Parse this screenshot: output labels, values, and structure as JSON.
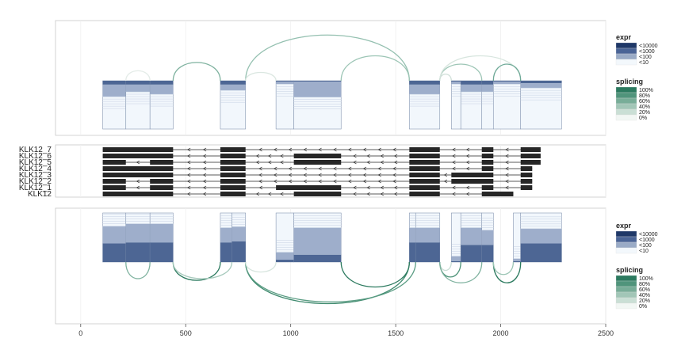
{
  "chart_data": {
    "type": "sashimi",
    "title": "",
    "xlabel": "",
    "ylabel": "",
    "x_axis": {
      "ticks": [
        0,
        500,
        1000,
        1500,
        2000,
        2500
      ],
      "range": [
        -120,
        2500
      ]
    },
    "isoforms": [
      {
        "name": "KLK12_7",
        "exons": [
          [
            105,
            440
          ],
          [
            665,
            785
          ],
          [
            1565,
            1710
          ],
          [
            1910,
            1965
          ],
          [
            2095,
            2190
          ]
        ]
      },
      {
        "name": "KLK12_6",
        "exons": [
          [
            105,
            440
          ],
          [
            665,
            785
          ],
          [
            1015,
            1240
          ],
          [
            1565,
            1710
          ],
          [
            1910,
            1965
          ],
          [
            2095,
            2190
          ]
        ]
      },
      {
        "name": "KLK12_5",
        "exons": [
          [
            105,
            215
          ],
          [
            330,
            440
          ],
          [
            665,
            785
          ],
          [
            1015,
            1240
          ],
          [
            1565,
            1710
          ],
          [
            1910,
            1965
          ],
          [
            2095,
            2190
          ]
        ]
      },
      {
        "name": "KLK12_4",
        "exons": [
          [
            105,
            440
          ],
          [
            665,
            785
          ],
          [
            1565,
            1710
          ],
          [
            1910,
            1965
          ],
          [
            2095,
            2150
          ]
        ]
      },
      {
        "name": "KLK12_3",
        "exons": [
          [
            105,
            440
          ],
          [
            665,
            785
          ],
          [
            1565,
            1710
          ],
          [
            1765,
            1965
          ],
          [
            2095,
            2150
          ]
        ]
      },
      {
        "name": "KLK12_2",
        "exons": [
          [
            105,
            215
          ],
          [
            330,
            440
          ],
          [
            665,
            785
          ],
          [
            1565,
            1710
          ],
          [
            1765,
            1965
          ],
          [
            2095,
            2150
          ]
        ]
      },
      {
        "name": "KLK12_1",
        "exons": [
          [
            105,
            215
          ],
          [
            330,
            440
          ],
          [
            665,
            785
          ],
          [
            930,
            1240
          ],
          [
            1565,
            1710
          ],
          [
            1910,
            1965
          ],
          [
            2095,
            2150
          ]
        ]
      },
      {
        "name": "KLK12",
        "exons": [
          [
            105,
            440
          ],
          [
            665,
            785
          ],
          [
            1015,
            1240
          ],
          [
            1565,
            1710
          ],
          [
            1910,
            2060
          ]
        ]
      }
    ],
    "panels": [
      {
        "position": "top",
        "coverage_blocks": [
          {
            "x0": 105,
            "x1": 215,
            "heavy": 0.08,
            "medium": 0.25
          },
          {
            "x0": 215,
            "x1": 330,
            "heavy": 0.08,
            "medium": 0.15
          },
          {
            "x0": 330,
            "x1": 440,
            "heavy": 0.08,
            "medium": 0.2
          },
          {
            "x0": 665,
            "x1": 785,
            "heavy": 0.08,
            "medium": 0.12
          },
          {
            "x0": 930,
            "x1": 1015,
            "heavy": 0.02,
            "medium": 0.05
          },
          {
            "x0": 1015,
            "x1": 1240,
            "heavy": 0.02,
            "medium": 0.32
          },
          {
            "x0": 1565,
            "x1": 1710,
            "heavy": 0.08,
            "medium": 0.2
          },
          {
            "x0": 1765,
            "x1": 1810,
            "heavy": 0.02,
            "medium": 0.05
          },
          {
            "x0": 1810,
            "x1": 1910,
            "heavy": 0.08,
            "medium": 0.15
          },
          {
            "x0": 1910,
            "x1": 1965,
            "heavy": 0.08,
            "medium": 0.15
          },
          {
            "x0": 1965,
            "x1": 2095,
            "heavy": 0.02,
            "medium": 0.05
          },
          {
            "x0": 2095,
            "x1": 2290,
            "heavy": 0.05,
            "medium": 0.1
          }
        ],
        "junctions": [
          {
            "from": 215,
            "to": 330,
            "height": 0.12,
            "color": "#e4ece8"
          },
          {
            "from": 440,
            "to": 665,
            "height": 0.22,
            "color": "#7fb29f"
          },
          {
            "from": 785,
            "to": 1565,
            "height": 0.55,
            "color": "#94c0b0"
          },
          {
            "from": 785,
            "to": 930,
            "height": 0.1,
            "color": "#dbe7e1"
          },
          {
            "from": 1240,
            "to": 1565,
            "height": 0.3,
            "color": "#9cc5b5"
          },
          {
            "from": 1710,
            "to": 1910,
            "height": 0.2,
            "color": "#9cc5b5"
          },
          {
            "from": 1710,
            "to": 2095,
            "height": 0.3,
            "color": "#d7e5de"
          },
          {
            "from": 1710,
            "to": 1765,
            "height": 0.08,
            "color": "#cfdfd8"
          },
          {
            "from": 1965,
            "to": 2095,
            "height": 0.2,
            "color": "#6ea997"
          }
        ]
      },
      {
        "position": "bottom",
        "coverage_blocks": [
          {
            "x0": 105,
            "x1": 215,
            "heavy": 0.38,
            "medium": 0.35
          },
          {
            "x0": 215,
            "x1": 330,
            "heavy": 0.4,
            "medium": 0.38
          },
          {
            "x0": 330,
            "x1": 440,
            "heavy": 0.4,
            "medium": 0.38
          },
          {
            "x0": 665,
            "x1": 720,
            "heavy": 0.4,
            "medium": 0.3
          },
          {
            "x0": 720,
            "x1": 785,
            "heavy": 0.42,
            "medium": 0.3
          },
          {
            "x0": 930,
            "x1": 1015,
            "heavy": 0.05,
            "medium": 0.15
          },
          {
            "x0": 1015,
            "x1": 1240,
            "heavy": 0.15,
            "medium": 0.55
          },
          {
            "x0": 1565,
            "x1": 1595,
            "heavy": 0.4,
            "medium": 0.3
          },
          {
            "x0": 1595,
            "x1": 1710,
            "heavy": 0.4,
            "medium": 0.3
          },
          {
            "x0": 1765,
            "x1": 1810,
            "heavy": 0.02,
            "medium": 0.1
          },
          {
            "x0": 1810,
            "x1": 1910,
            "heavy": 0.35,
            "medium": 0.35
          },
          {
            "x0": 1910,
            "x1": 1965,
            "heavy": 0.35,
            "medium": 0.3
          },
          {
            "x0": 2060,
            "x1": 2095,
            "heavy": 0.02,
            "medium": 0.05
          },
          {
            "x0": 2095,
            "x1": 2290,
            "heavy": 0.38,
            "medium": 0.3
          }
        ],
        "junctions": [
          {
            "from": 215,
            "to": 330,
            "height": 0.2,
            "color": "#7fb29f"
          },
          {
            "from": 440,
            "to": 665,
            "height": 0.22,
            "color": "#2c7a5f"
          },
          {
            "from": 440,
            "to": 720,
            "height": 0.2,
            "color": "#a8cabd"
          },
          {
            "from": 785,
            "to": 1565,
            "height": 0.5,
            "color": "#3f8a6e"
          },
          {
            "from": 785,
            "to": 1595,
            "height": 0.48,
            "color": "#5a9c83"
          },
          {
            "from": 785,
            "to": 930,
            "height": 0.12,
            "color": "#d7e5de"
          },
          {
            "from": 1240,
            "to": 1565,
            "height": 0.3,
            "color": "#2c7a5f"
          },
          {
            "from": 1710,
            "to": 1765,
            "height": 0.1,
            "color": "#c9ddd4"
          },
          {
            "from": 1710,
            "to": 1810,
            "height": 0.18,
            "color": "#4e9479"
          },
          {
            "from": 1710,
            "to": 1910,
            "height": 0.25,
            "color": "#7fb29f"
          },
          {
            "from": 1965,
            "to": 2095,
            "height": 0.25,
            "color": "#2c7a5f"
          },
          {
            "from": 1965,
            "to": 2060,
            "height": 0.15,
            "color": "#9cc5b5"
          }
        ]
      }
    ],
    "legends": {
      "expr": {
        "title": "expr",
        "labels": [
          "<10000",
          "<1000",
          "<100",
          "<10"
        ],
        "colors": [
          "#1f3868",
          "#4a6496",
          "#9aabc6",
          "#f3f8fc"
        ]
      },
      "splicing": {
        "title": "splicing",
        "labels": [
          "100%",
          "80%",
          "60%",
          "40%",
          "20%",
          "0%"
        ],
        "colors": [
          "#2c7a5f",
          "#50947b",
          "#78ad98",
          "#a2c6b7",
          "#cadfd5",
          "#f2f7f4"
        ]
      }
    },
    "colors": {
      "heavy": "#4d6694",
      "medium": "#9eaecb",
      "light": "#f2f7fc",
      "exon": "#262626"
    }
  }
}
